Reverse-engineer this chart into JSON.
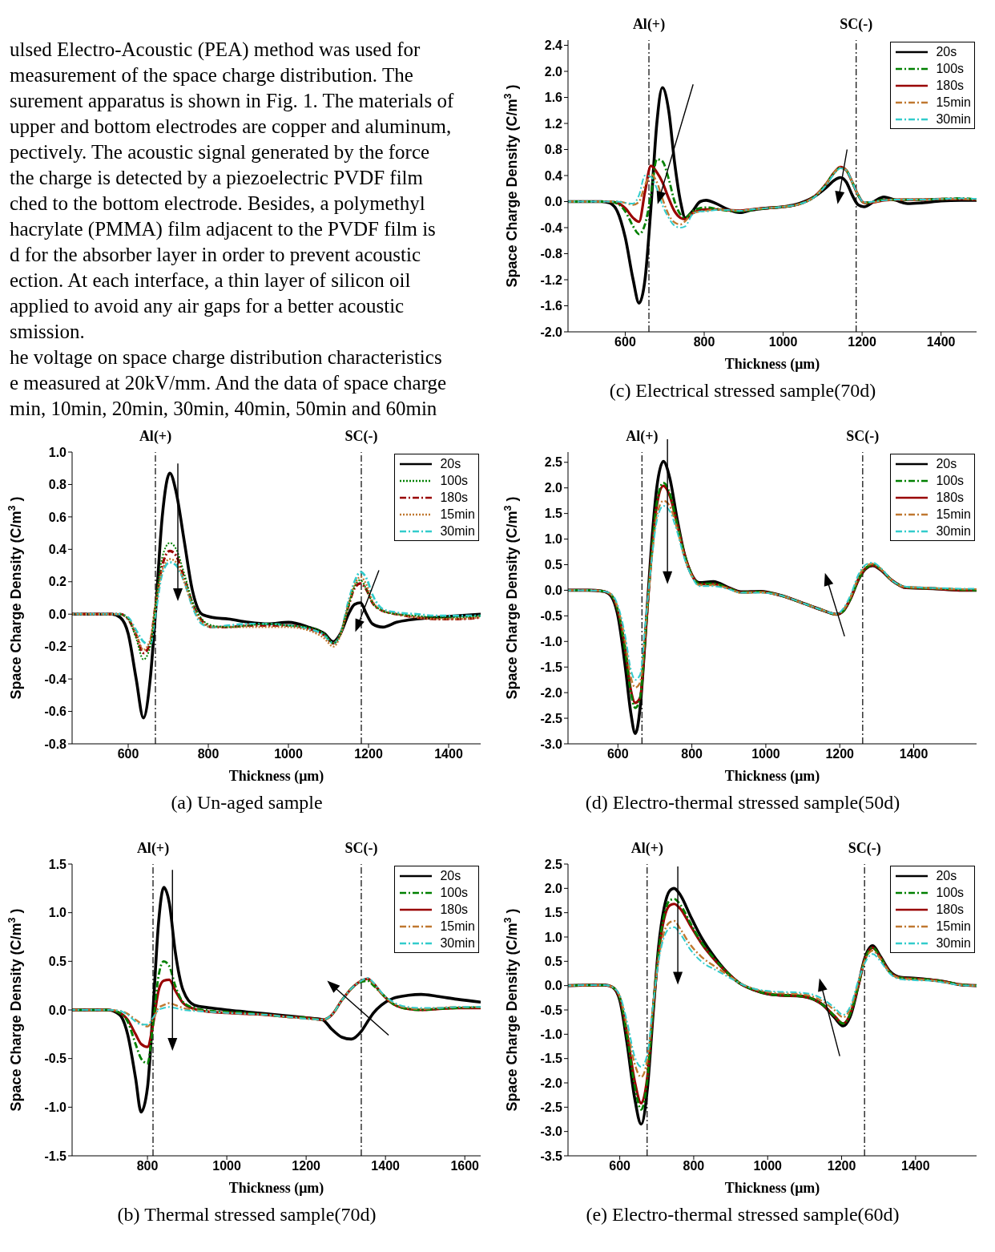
{
  "chart_data": [
    {
      "type": "other",
      "annotations": [
        "ulsed Electro-Acoustic (PEA) method was used for",
        "measurement of the space charge distribution. The",
        "surement apparatus is shown in Fig. 1. The materials of",
        "upper and bottom electrodes are copper and aluminum,",
        "pectively. The acoustic signal generated by the force",
        "the charge is detected by a piezoelectric PVDF film",
        "ched to the bottom electrode. Besides, a polymethyl",
        "hacrylate (PMMA) film adjacent to the PVDF film is",
        "d for the absorber layer in order to prevent acoustic",
        "ection. At each interface, a thin layer of silicon oil",
        "applied to avoid any air gaps for a better acoustic",
        "smission.",
        "he voltage on space charge distribution characteristics",
        "e measured at 20kV/mm. And the data of space charge",
        "min, 10min, 20min, 30min, 40min, 50min and 60min"
      ]
    },
    {
      "type": "line",
      "title": "(c) Electrical stressed sample(70d)",
      "xlabel": "Thickness (μm)",
      "ylabel": "Space Charge Density (C/m$^{3}$)",
      "legend": "top right",
      "xlim": [
        455,
        1490
      ],
      "xticks": [
        600,
        800,
        1000,
        1200,
        1400
      ],
      "ylim": [
        -2.0,
        2.48
      ],
      "yticks": [
        {
          "value": -2,
          "label": "-2.0"
        },
        {
          "value": -1.6,
          "label": "-1.6"
        },
        {
          "value": -1.2,
          "label": "-1.2"
        },
        {
          "value": -0.8,
          "label": "-0.8"
        },
        {
          "value": -0.4,
          "label": "-0.4"
        },
        {
          "value": 0,
          "label": "0.0"
        },
        {
          "value": 0.4,
          "label": "0.4"
        },
        {
          "value": 0.8,
          "label": "0.8"
        },
        {
          "value": 1.2,
          "label": "1.2"
        },
        {
          "value": 1.6,
          "label": "1.6"
        },
        {
          "value": 2,
          "label": "2.0"
        },
        {
          "value": 2.4,
          "label": "2.4"
        }
      ],
      "ref_lines": [
        {
          "axis": "x",
          "value": 660,
          "label": "Al(+)",
          "color": "#000000",
          "line_style": "dashed"
        },
        {
          "axis": "x",
          "value": 1185,
          "label": "SC(-)",
          "color": "#000000",
          "line_style": "dashed"
        }
      ],
      "x": [
        455,
        500,
        540,
        560,
        580,
        600,
        620,
        635,
        650,
        665,
        680,
        694,
        710,
        725,
        740,
        752,
        770,
        790,
        805,
        830,
        860,
        890,
        920,
        960,
        1000,
        1040,
        1080,
        1110,
        1130,
        1145,
        1160,
        1175,
        1190,
        1205,
        1230,
        1255,
        1285,
        1315,
        1350,
        1400,
        1450,
        1490
      ],
      "series": [
        {
          "name": "20s",
          "color": "#000000",
          "line_style": "solid",
          "values": [
            0,
            0,
            0,
            -0.02,
            -0.15,
            -0.55,
            -1.2,
            -1.56,
            -1.2,
            -0.1,
            1.2,
            1.75,
            1.4,
            0.6,
            0,
            -0.25,
            -0.15,
            0,
            0.02,
            -0.03,
            -0.12,
            -0.17,
            -0.13,
            -0.1,
            -0.08,
            -0.03,
            0.08,
            0.22,
            0.33,
            0.37,
            0.3,
            0.1,
            -0.05,
            -0.08,
            0,
            0.07,
            0.02,
            -0.03,
            -0.02,
            0.01,
            0.02,
            0.02
          ]
        },
        {
          "name": "100s",
          "color": "#008000",
          "line_style": "dashed",
          "values": [
            0,
            0,
            0,
            0,
            -0.03,
            -0.15,
            -0.38,
            -0.5,
            -0.35,
            0.1,
            0.65,
            0.62,
            0.35,
            0,
            -0.2,
            -0.25,
            -0.15,
            -0.1,
            -0.09,
            -0.11,
            -0.14,
            -0.15,
            -0.13,
            -0.1,
            -0.08,
            -0.04,
            0.08,
            0.28,
            0.45,
            0.52,
            0.48,
            0.3,
            0.1,
            -0.02,
            0,
            0.03,
            0.03,
            0.03,
            0.03,
            0.04,
            0.05,
            0.03
          ]
        },
        {
          "name": "180s",
          "color": "#990000",
          "line_style": "solid",
          "values": [
            null,
            null,
            0,
            0,
            -0.02,
            -0.1,
            -0.25,
            -0.31,
            0.15,
            0.55,
            0.45,
            0.3,
            0.05,
            -0.15,
            -0.25,
            -0.27,
            -0.18,
            -0.13,
            -0.12,
            -0.12,
            -0.13,
            -0.14,
            -0.12,
            -0.1,
            -0.08,
            -0.04,
            0.08,
            0.28,
            0.45,
            0.53,
            0.48,
            0.3,
            0.1,
            -0.02,
            -0.01,
            0.02,
            0.03,
            0.03,
            0.03,
            0.04,
            0.04,
            0.03
          ]
        },
        {
          "name": "15min",
          "color": "#c07830",
          "line_style": "dashed",
          "values": [
            0,
            0,
            0,
            0,
            0,
            -0.02,
            -0.05,
            0,
            0.25,
            0.42,
            0.3,
            0.05,
            -0.2,
            -0.32,
            -0.35,
            -0.3,
            -0.18,
            -0.15,
            -0.14,
            -0.12,
            -0.13,
            -0.14,
            -0.12,
            -0.1,
            -0.08,
            -0.04,
            0.08,
            0.28,
            0.45,
            0.53,
            0.48,
            0.3,
            0.1,
            -0.02,
            -0.01,
            0.02,
            0.03,
            0.03,
            0.03,
            0.04,
            0.04,
            0.03
          ]
        },
        {
          "name": "30min",
          "color": "#33cccc",
          "line_style": "dashed",
          "values": [
            0,
            0,
            0,
            0,
            0,
            -0.02,
            -0.03,
            0.1,
            0.4,
            0.38,
            0.2,
            -0.05,
            -0.25,
            -0.37,
            -0.4,
            -0.38,
            -0.2,
            -0.15,
            -0.15,
            -0.13,
            -0.13,
            -0.14,
            -0.12,
            -0.1,
            -0.08,
            -0.04,
            0.07,
            0.26,
            0.43,
            0.51,
            0.48,
            0.3,
            0.1,
            -0.01,
            0,
            0.02,
            0.03,
            0.03,
            0.03,
            0.04,
            0.05,
            0.04
          ]
        }
      ]
    },
    {
      "type": "line",
      "title": "(a) Un-aged sample",
      "xlabel": "Thickness (μm)",
      "ylabel": "Space Charge Density (C/m$^{3}$)",
      "legend": "top right",
      "xlim": [
        460,
        1480
      ],
      "xticks": [
        600,
        800,
        1000,
        1200,
        1400
      ],
      "ylim": [
        -0.8,
        1.0
      ],
      "yticks": [
        {
          "value": -0.8,
          "label": "-0.8"
        },
        {
          "value": -0.6,
          "label": "-0.6"
        },
        {
          "value": -0.4,
          "label": "-0.4"
        },
        {
          "value": -0.2,
          "label": "-0.2"
        },
        {
          "value": 0,
          "label": "0.0"
        },
        {
          "value": 0.2,
          "label": "0.2"
        },
        {
          "value": 0.4,
          "label": "0.4"
        },
        {
          "value": 0.6,
          "label": "0.6"
        },
        {
          "value": 0.8,
          "label": "0.8"
        },
        {
          "value": 1,
          "label": "1.0"
        }
      ],
      "ref_lines": [
        {
          "axis": "x",
          "value": 668,
          "label": "Al(+)",
          "color": "#000000",
          "line_style": "dashed"
        },
        {
          "axis": "x",
          "value": 1182,
          "label": "SC(-)",
          "color": "#000000",
          "line_style": "dashed"
        }
      ],
      "x": [
        460,
        520,
        560,
        580,
        600,
        620,
        638,
        655,
        668,
        685,
        704,
        720,
        740,
        760,
        784,
        810,
        850,
        900,
        950,
        1000,
        1050,
        1090,
        1112,
        1130,
        1150,
        1165,
        1180,
        1195,
        1210,
        1236,
        1270,
        1320,
        1370,
        1420,
        1480
      ],
      "series": [
        {
          "name": "20s",
          "color": "#000000",
          "line_style": "solid",
          "values": [
            0,
            0,
            0,
            -0.02,
            -0.12,
            -0.4,
            -0.64,
            -0.4,
            0,
            0.6,
            0.87,
            0.75,
            0.45,
            0.15,
            0,
            -0.02,
            -0.03,
            -0.05,
            -0.06,
            -0.05,
            -0.08,
            -0.12,
            -0.17,
            -0.12,
            0,
            0.06,
            0.07,
            0,
            -0.06,
            -0.08,
            -0.05,
            -0.03,
            -0.02,
            -0.01,
            0
          ]
        },
        {
          "name": "100s",
          "color": "#008000",
          "line_style": "dotted",
          "values": [
            null,
            null,
            null,
            0,
            -0.03,
            -0.15,
            -0.28,
            -0.2,
            0.05,
            0.35,
            0.44,
            0.4,
            0.25,
            0.08,
            -0.03,
            -0.07,
            -0.08,
            -0.07,
            -0.06,
            -0.07,
            -0.08,
            -0.12,
            -0.18,
            -0.12,
            0.05,
            0.17,
            0.21,
            0.15,
            0.07,
            0.02,
            0,
            -0.01,
            -0.02,
            -0.02,
            -0.01
          ]
        },
        {
          "name": "180s",
          "color": "#990000",
          "line_style": "dashed",
          "values": [
            0,
            0,
            0,
            0,
            -0.03,
            -0.13,
            -0.24,
            -0.18,
            0.05,
            0.3,
            0.39,
            0.36,
            0.22,
            0.07,
            -0.04,
            -0.08,
            -0.08,
            -0.07,
            -0.07,
            -0.07,
            -0.09,
            -0.13,
            -0.18,
            -0.12,
            0.05,
            0.16,
            0.19,
            0.15,
            0.07,
            0.02,
            0,
            -0.02,
            -0.03,
            -0.03,
            -0.02
          ]
        },
        {
          "name": "15min",
          "color": "#c07830",
          "line_style": "dotted",
          "values": [
            0,
            0,
            0,
            0,
            -0.03,
            -0.12,
            -0.22,
            -0.16,
            0.05,
            0.27,
            0.34,
            0.32,
            0.2,
            0.06,
            -0.05,
            -0.08,
            -0.08,
            -0.08,
            -0.08,
            -0.08,
            -0.1,
            -0.15,
            -0.2,
            -0.13,
            0.06,
            0.18,
            0.23,
            0.18,
            0.08,
            0.02,
            0,
            -0.02,
            -0.03,
            -0.03,
            -0.02
          ]
        },
        {
          "name": "30min",
          "color": "#33cccc",
          "line_style": "dashed",
          "values": [
            0,
            0,
            0,
            0,
            -0.02,
            -0.1,
            -0.17,
            -0.19,
            0,
            0.25,
            0.32,
            0.3,
            0.2,
            0.05,
            -0.06,
            -0.08,
            -0.07,
            -0.06,
            -0.06,
            -0.07,
            -0.09,
            -0.13,
            -0.18,
            -0.12,
            0.08,
            0.2,
            0.26,
            0.22,
            0.12,
            0.03,
            0.01,
            0,
            -0.01,
            -0.01,
            -0.01
          ]
        }
      ]
    },
    {
      "type": "line",
      "title": "(d) Electro-thermal stressed sample(50d)",
      "xlabel": "Thickness (μm)",
      "ylabel": "Space Charge Density (C/m$^{3}$)",
      "legend": "top right",
      "xlim": [
        465,
        1570
      ],
      "xticks": [
        600,
        800,
        1000,
        1200,
        1400
      ],
      "ylim": [
        -3.0,
        2.7
      ],
      "yticks": [
        {
          "value": -3,
          "label": "-3.0"
        },
        {
          "value": -2.5,
          "label": "-2.5"
        },
        {
          "value": -2,
          "label": "-2.0"
        },
        {
          "value": -1.5,
          "label": "-1.5"
        },
        {
          "value": -1,
          "label": "-1.0"
        },
        {
          "value": -0.5,
          "label": "-0.5"
        },
        {
          "value": 0,
          "label": "0.0"
        },
        {
          "value": 0.5,
          "label": "0.5"
        },
        {
          "value": 1,
          "label": "1.0"
        },
        {
          "value": 1.5,
          "label": "1.5"
        },
        {
          "value": 2,
          "label": "2.0"
        },
        {
          "value": 2.5,
          "label": "2.5"
        }
      ],
      "ref_lines": [
        {
          "axis": "x",
          "value": 665,
          "label": "Al(+)",
          "color": "#000000",
          "line_style": "dashed"
        },
        {
          "axis": "x",
          "value": 1262,
          "label": "SC(-)",
          "color": "#000000",
          "line_style": "dashed"
        }
      ],
      "x": [
        465,
        520,
        560,
        580,
        600,
        620,
        635,
        647,
        660,
        675,
        690,
        705,
        723,
        740,
        760,
        780,
        800,
        820,
        858,
        900,
        933,
        987,
        1040,
        1100,
        1150,
        1191,
        1210,
        1230,
        1250,
        1270,
        1289,
        1310,
        1340,
        1380,
        1430,
        1480,
        1530,
        1570
      ],
      "series": [
        {
          "name": "20s",
          "color": "#000000",
          "line_style": "solid",
          "values": [
            0,
            0,
            -0.02,
            -0.1,
            -0.5,
            -1.5,
            -2.4,
            -2.8,
            -2.3,
            -0.8,
            0.8,
            2.0,
            2.52,
            2.2,
            1.4,
            0.7,
            0.3,
            0.15,
            0.17,
            0.05,
            -0.03,
            -0.02,
            -0.1,
            -0.25,
            -0.38,
            -0.47,
            -0.4,
            -0.15,
            0.2,
            0.42,
            0.48,
            0.4,
            0.2,
            0.05,
            0.04,
            0.02,
            0,
            0
          ]
        },
        {
          "name": "100s",
          "color": "#008000",
          "line_style": "dashed",
          "values": [
            0,
            0,
            -0.02,
            -0.08,
            -0.4,
            -1.2,
            -2.0,
            -2.3,
            -2.1,
            -0.8,
            0.6,
            1.7,
            2.1,
            1.9,
            1.3,
            0.7,
            0.3,
            0.13,
            0.13,
            0.04,
            -0.04,
            -0.03,
            -0.1,
            -0.25,
            -0.38,
            -0.47,
            -0.4,
            -0.15,
            0.2,
            0.43,
            0.5,
            0.42,
            0.2,
            0.06,
            0.04,
            0.03,
            0.01,
            0
          ]
        },
        {
          "name": "180s",
          "color": "#990000",
          "line_style": "solid",
          "values": [
            0,
            0,
            -0.02,
            -0.08,
            -0.4,
            -1.15,
            -1.95,
            -2.2,
            -2.1,
            -0.8,
            0.6,
            1.65,
            2.04,
            1.85,
            1.3,
            0.7,
            0.3,
            0.12,
            0.12,
            0.04,
            -0.04,
            -0.03,
            -0.1,
            -0.25,
            -0.38,
            -0.47,
            -0.4,
            -0.15,
            0.2,
            0.43,
            0.49,
            0.41,
            0.2,
            0.05,
            0.04,
            0.02,
            0,
            0
          ]
        },
        {
          "name": "15min",
          "color": "#c07830",
          "line_style": "dashed",
          "values": [
            0,
            0,
            -0.02,
            -0.07,
            -0.35,
            -1.0,
            -1.7,
            -1.9,
            -1.8,
            -0.7,
            0.5,
            1.45,
            1.75,
            1.65,
            1.2,
            0.65,
            0.28,
            0.1,
            0.1,
            0.03,
            -0.05,
            -0.04,
            -0.1,
            -0.25,
            -0.38,
            -0.47,
            -0.38,
            -0.12,
            0.25,
            0.47,
            0.52,
            0.42,
            0.2,
            0.06,
            0.05,
            0.03,
            0.02,
            0.02
          ]
        },
        {
          "name": "30min",
          "color": "#33cccc",
          "line_style": "dashed",
          "values": [
            0,
            0,
            -0.02,
            -0.06,
            -0.3,
            -0.9,
            -1.55,
            -1.75,
            -1.65,
            -0.6,
            0.5,
            1.35,
            1.65,
            1.55,
            1.15,
            0.62,
            0.27,
            0.08,
            0.08,
            0.02,
            -0.05,
            -0.05,
            -0.1,
            -0.25,
            -0.38,
            -0.46,
            -0.35,
            -0.08,
            0.3,
            0.5,
            0.54,
            0.44,
            0.2,
            0.07,
            0.05,
            0.04,
            0.03,
            0.03
          ]
        }
      ]
    },
    {
      "type": "line",
      "title": "(b) Thermal stressed sample(70d)",
      "xlabel": "Thickness (μm)",
      "ylabel": "Space Charge Density (C/m$^{3}$)",
      "legend": "top right",
      "xlim": [
        610,
        1640
      ],
      "xticks": [
        800,
        1000,
        1200,
        1400,
        1600
      ],
      "ylim": [
        -1.5,
        1.5
      ],
      "yticks": [
        {
          "value": -1.5,
          "label": "-1.5"
        },
        {
          "value": -1,
          "label": "-1.0"
        },
        {
          "value": -0.5,
          "label": "-0.5"
        },
        {
          "value": 0,
          "label": "0.0"
        },
        {
          "value": 0.5,
          "label": "0.5"
        },
        {
          "value": 1,
          "label": "1.0"
        },
        {
          "value": 1.5,
          "label": "1.5"
        }
      ],
      "ref_lines": [
        {
          "axis": "x",
          "value": 814,
          "label": "Al(+)",
          "color": "#000000",
          "line_style": "dashed"
        },
        {
          "axis": "x",
          "value": 1339,
          "label": "SC(-)",
          "color": "#000000",
          "line_style": "dashed"
        }
      ],
      "x": [
        610,
        660,
        700,
        730,
        750,
        770,
        784,
        800,
        814,
        828,
        841,
        855,
        870,
        890,
        918,
        960,
        1000,
        1050,
        1100,
        1150,
        1200,
        1241,
        1265,
        1290,
        1314,
        1339,
        1355,
        1370,
        1390,
        1420,
        1457,
        1490,
        1530,
        1580,
        1640
      ],
      "series": [
        {
          "name": "20s",
          "color": "#000000",
          "line_style": "solid",
          "values": [
            0,
            0,
            0,
            -0.05,
            -0.25,
            -0.7,
            -1.05,
            -0.8,
            0,
            0.9,
            1.26,
            1.1,
            0.6,
            0.2,
            0.05,
            0.02,
            0,
            -0.02,
            -0.04,
            -0.06,
            -0.08,
            -0.1,
            -0.2,
            -0.28,
            -0.3,
            -0.22,
            -0.12,
            -0.03,
            0.05,
            0.12,
            0.15,
            0.16,
            0.14,
            0.11,
            0.08
          ]
        },
        {
          "name": "100s",
          "color": "#008000",
          "line_style": "dashed",
          "values": [
            0,
            0,
            0,
            -0.03,
            -0.12,
            -0.35,
            -0.5,
            -0.55,
            -0.15,
            0.35,
            0.5,
            0.45,
            0.25,
            0.08,
            0.02,
            -0.01,
            -0.02,
            -0.03,
            -0.05,
            -0.07,
            -0.08,
            -0.1,
            -0.05,
            0.1,
            0.22,
            0.29,
            0.3,
            0.25,
            0.17,
            0.06,
            0.01,
            0,
            0.01,
            0.02,
            0.03
          ]
        },
        {
          "name": "180s",
          "color": "#990000",
          "line_style": "solid",
          "values": [
            0,
            0,
            0,
            -0.03,
            -0.1,
            -0.25,
            -0.35,
            -0.38,
            -0.15,
            0.2,
            0.3,
            0.31,
            0.2,
            0.07,
            0.01,
            -0.02,
            -0.03,
            -0.04,
            -0.05,
            -0.07,
            -0.08,
            -0.1,
            -0.05,
            0.1,
            0.22,
            0.3,
            0.32,
            0.27,
            0.17,
            0.06,
            0.01,
            0,
            0.01,
            0.02,
            0.02
          ]
        },
        {
          "name": "15min",
          "color": "#c07830",
          "line_style": "dashed",
          "values": [
            0,
            0,
            0,
            -0.01,
            -0.04,
            -0.1,
            -0.14,
            -0.17,
            -0.1,
            0.02,
            0.05,
            0.07,
            0.05,
            0.02,
            0,
            -0.02,
            -0.03,
            -0.04,
            -0.05,
            -0.07,
            -0.09,
            -0.1,
            -0.05,
            0.1,
            0.22,
            0.3,
            0.32,
            0.27,
            0.17,
            0.07,
            0.02,
            0.01,
            0.02,
            0.03,
            0.03
          ]
        },
        {
          "name": "30min",
          "color": "#33cccc",
          "line_style": "dashed",
          "values": [
            0,
            0,
            0,
            -0.01,
            -0.05,
            -0.12,
            -0.15,
            -0.15,
            -0.08,
            0,
            0.02,
            0.03,
            0.02,
            0,
            -0.01,
            -0.02,
            -0.03,
            -0.04,
            -0.05,
            -0.07,
            -0.09,
            -0.1,
            -0.05,
            0.1,
            0.22,
            0.3,
            0.33,
            0.28,
            0.18,
            0.08,
            0.03,
            0.02,
            0.02,
            0.03,
            0.03
          ]
        }
      ]
    },
    {
      "type": "line",
      "title": "(e) Electro-thermal stressed sample(60d)",
      "xlabel": "Thickness (μm)",
      "ylabel": "Space Charge Density (C/m$^{3}$)",
      "legend": "top right",
      "xlim": [
        460,
        1565
      ],
      "xticks": [
        600,
        800,
        1000,
        1200,
        1400
      ],
      "ylim": [
        -3.5,
        2.5
      ],
      "yticks": [
        {
          "value": -3.5,
          "label": "-3.5"
        },
        {
          "value": -3,
          "label": "-3.0"
        },
        {
          "value": -2.5,
          "label": "-2.5"
        },
        {
          "value": -2,
          "label": "-2.0"
        },
        {
          "value": -1.5,
          "label": "-1.5"
        },
        {
          "value": -1,
          "label": "-1.0"
        },
        {
          "value": -0.5,
          "label": "-0.5"
        },
        {
          "value": 0,
          "label": "0.0"
        },
        {
          "value": 0.5,
          "label": "0.5"
        },
        {
          "value": 1,
          "label": "1.0"
        },
        {
          "value": 1.5,
          "label": "1.5"
        },
        {
          "value": 2,
          "label": "2.0"
        },
        {
          "value": 2.5,
          "label": "2.5"
        }
      ],
      "ref_lines": [
        {
          "axis": "x",
          "value": 674,
          "label": "Al(+)",
          "color": "#000000",
          "line_style": "dashed"
        },
        {
          "axis": "x",
          "value": 1262,
          "label": "SC(-)",
          "color": "#000000",
          "line_style": "dashed"
        }
      ],
      "x": [
        460,
        520,
        560,
        580,
        600,
        620,
        640,
        658,
        675,
        690,
        705,
        720,
        735,
        747,
        765,
        790,
        820,
        860,
        900,
        924,
        960,
        1000,
        1040,
        1080,
        1120,
        1150,
        1180,
        1204,
        1225,
        1245,
        1262,
        1284,
        1305,
        1330,
        1360,
        1400,
        1440,
        1480,
        1520,
        1565
      ],
      "series": [
        {
          "name": "20s",
          "color": "#000000",
          "line_style": "solid",
          "values": [
            0,
            0.01,
            0.01,
            -0.03,
            -0.3,
            -1.2,
            -2.3,
            -2.85,
            -2.1,
            -0.6,
            0.8,
            1.6,
            1.95,
            2.0,
            1.85,
            1.45,
            1.0,
            0.55,
            0.2,
            0.05,
            -0.08,
            -0.17,
            -0.2,
            -0.21,
            -0.27,
            -0.4,
            -0.65,
            -0.83,
            -0.6,
            0,
            0.55,
            0.82,
            0.6,
            0.3,
            0.17,
            0.15,
            0.12,
            0.08,
            0.02,
            0
          ]
        },
        {
          "name": "100s",
          "color": "#008000",
          "line_style": "dashed",
          "values": [
            0,
            0.01,
            0.01,
            -0.03,
            -0.25,
            -1.05,
            -2.05,
            -2.55,
            -1.9,
            -0.5,
            0.7,
            1.45,
            1.75,
            1.78,
            1.65,
            1.3,
            0.9,
            0.52,
            0.2,
            0.05,
            -0.08,
            -0.17,
            -0.2,
            -0.21,
            -0.27,
            -0.4,
            -0.62,
            -0.78,
            -0.55,
            0,
            0.52,
            0.78,
            0.58,
            0.28,
            0.16,
            0.14,
            0.12,
            0.08,
            0.02,
            0
          ]
        },
        {
          "name": "180s",
          "color": "#990000",
          "line_style": "solid",
          "values": [
            0,
            0.01,
            0.01,
            -0.03,
            -0.25,
            -1.0,
            -1.95,
            -2.42,
            -1.85,
            -0.5,
            0.65,
            1.38,
            1.65,
            1.68,
            1.57,
            1.25,
            0.88,
            0.5,
            0.2,
            0.05,
            -0.08,
            -0.17,
            -0.2,
            -0.21,
            -0.27,
            -0.4,
            -0.62,
            -0.78,
            -0.55,
            0,
            0.52,
            0.78,
            0.58,
            0.28,
            0.16,
            0.14,
            0.12,
            0.08,
            0.02,
            0
          ]
        },
        {
          "name": "15min",
          "color": "#c07830",
          "line_style": "dashed",
          "values": [
            0,
            0.01,
            0.01,
            -0.03,
            -0.22,
            -0.85,
            -1.6,
            -1.88,
            -1.5,
            -0.4,
            0.55,
            1.1,
            1.3,
            1.33,
            1.15,
            0.85,
            0.6,
            0.38,
            0.18,
            0.06,
            -0.06,
            -0.13,
            -0.16,
            -0.17,
            -0.22,
            -0.33,
            -0.5,
            -0.65,
            -0.45,
            0.05,
            0.5,
            0.72,
            0.55,
            0.27,
            0.15,
            0.13,
            0.11,
            0.07,
            0.02,
            0
          ]
        },
        {
          "name": "30min",
          "color": "#33cccc",
          "line_style": "dashed",
          "values": [
            0,
            0.01,
            0.01,
            -0.03,
            -0.2,
            -0.75,
            -1.45,
            -1.67,
            -1.4,
            -0.4,
            0.5,
            1.0,
            1.18,
            1.2,
            1.05,
            0.75,
            0.5,
            0.32,
            0.15,
            0.05,
            -0.06,
            -0.11,
            -0.13,
            -0.14,
            -0.18,
            -0.28,
            -0.45,
            -0.6,
            -0.4,
            0.1,
            0.45,
            0.65,
            0.5,
            0.25,
            0.13,
            0.11,
            0.1,
            0.06,
            0.01,
            0
          ]
        }
      ]
    }
  ]
}
